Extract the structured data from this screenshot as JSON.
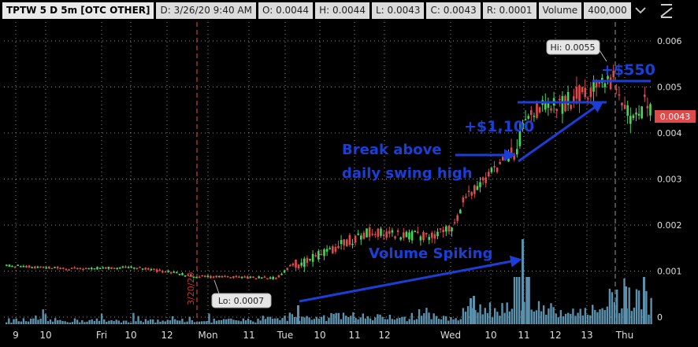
{
  "header": {
    "symbol": "TPTW 5 D 5m [OTC OTHER]",
    "date": "D: 3/26/20 9:40 AM",
    "open": "O: 0.0044",
    "high": "H: 0.0044",
    "low": "L: 0.0043",
    "close": "C: 0.0043",
    "range": "R: 0.0001",
    "volume_label": "Volume",
    "volume_value": "400,000"
  },
  "colors": {
    "background": "#000000",
    "up": "#44d85a",
    "down": "#e04a4a",
    "volume": "#5b91ad",
    "grid": "#8a8a8a",
    "annotation": "#1b3fd6",
    "session_marker": "#c0392b"
  },
  "annotations": {
    "hi_label": "Hi: 0.0055",
    "lo_label": "Lo: 0.0007",
    "gain1": "+$1,100",
    "gain2": "+$550",
    "break_line1": "Break above",
    "break_line2": "daily swing high",
    "volume_spike": "Volume Spiking",
    "session_date": "3/20/20",
    "last_price": "0.0043"
  },
  "chart_data": {
    "type": "candlestick",
    "price_ticks": [
      "0",
      "0.001",
      "0.002",
      "0.003",
      "0.004",
      "0.005",
      "0.006"
    ],
    "ylim": [
      0,
      0.0065
    ],
    "time_ticks": [
      "9",
      "10",
      "Fri",
      "10",
      "12",
      "Mon",
      "11",
      "Tue",
      "10",
      "11",
      "12",
      "Wed",
      "10",
      "11",
      "12",
      "13",
      "Thu"
    ],
    "price_path": [
      [
        0.0,
        0.00112
      ],
      [
        0.1,
        0.00105
      ],
      [
        0.2,
        0.00108
      ],
      [
        0.24,
        0.001
      ],
      [
        0.3,
        0.00088
      ],
      [
        0.42,
        0.00085
      ],
      [
        0.44,
        0.0011
      ],
      [
        0.48,
        0.0013
      ],
      [
        0.52,
        0.0016
      ],
      [
        0.56,
        0.00185
      ],
      [
        0.6,
        0.0018
      ],
      [
        0.64,
        0.00175
      ],
      [
        0.69,
        0.0019
      ],
      [
        0.71,
        0.0026
      ],
      [
        0.74,
        0.003
      ],
      [
        0.77,
        0.0034
      ],
      [
        0.79,
        0.0036
      ],
      [
        0.8,
        0.0042
      ],
      [
        0.82,
        0.0045
      ],
      [
        0.86,
        0.0046
      ],
      [
        0.88,
        0.0048
      ],
      [
        0.92,
        0.0051
      ],
      [
        0.94,
        0.0052
      ],
      [
        0.95,
        0.0046
      ],
      [
        0.97,
        0.0042
      ],
      [
        0.99,
        0.0047
      ],
      [
        1.0,
        0.0043
      ]
    ],
    "high": 0.0055,
    "low": 0.0007
  }
}
